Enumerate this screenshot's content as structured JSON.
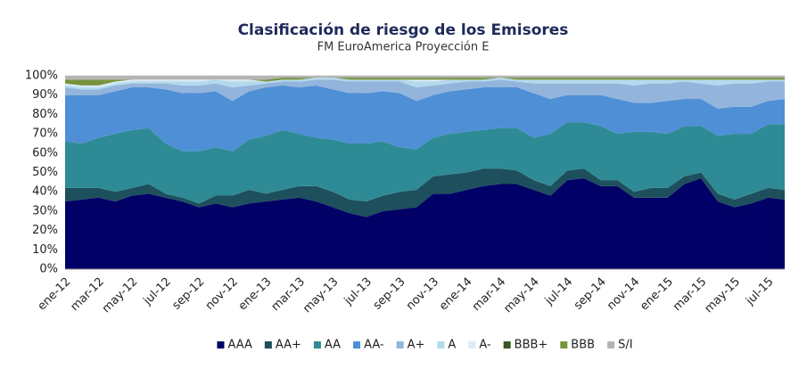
{
  "chart_data": {
    "type": "stacked_area",
    "title": "Clasificación de riesgo de los Emisores",
    "subtitle": "FM EuroAmerica Proyección E",
    "categories": [
      "ene-12",
      null,
      "mar-12",
      null,
      "may-12",
      null,
      "jul-12",
      null,
      "sep-12",
      null,
      "nov-12",
      null,
      "ene-13",
      null,
      "mar-13",
      null,
      "may-13",
      null,
      "jul-13",
      null,
      "sep-13",
      null,
      "nov-13",
      null,
      "ene-14",
      null,
      "mar-14",
      null,
      "may-14",
      null,
      "jul-14",
      null,
      "sep-14",
      null,
      "nov-14",
      null,
      "ene-15",
      null,
      "mar-15",
      null,
      "may-15",
      null,
      "jul-15",
      null
    ],
    "ylim": [
      0,
      100
    ],
    "yticks": [
      {
        "value": 0,
        "label": "0%"
      },
      {
        "value": 10,
        "label": "10%"
      },
      {
        "value": 20,
        "label": "20%"
      },
      {
        "value": 30,
        "label": "30%"
      },
      {
        "value": 40,
        "label": "40%"
      },
      {
        "value": 50,
        "label": "50%"
      },
      {
        "value": 60,
        "label": "60%"
      },
      {
        "value": 70,
        "label": "70%"
      },
      {
        "value": 80,
        "label": "80%"
      },
      {
        "value": 90,
        "label": "90%"
      },
      {
        "value": 100,
        "label": "100%"
      }
    ],
    "grid": true,
    "legend": "bottom",
    "series": [
      {
        "name": "AAA",
        "color": "#000066",
        "values": [
          35,
          36,
          37,
          35,
          38,
          39,
          37,
          35,
          32,
          34,
          32,
          34,
          35,
          36,
          37,
          35,
          32,
          29,
          27,
          30,
          31,
          32,
          39,
          39,
          41,
          43,
          44,
          44,
          41,
          38,
          46,
          47,
          43,
          43,
          37,
          37,
          37,
          44,
          47,
          35,
          32,
          34,
          37,
          36
        ]
      },
      {
        "name": "AA+",
        "color": "#1d4f5c",
        "values": [
          7,
          6,
          5,
          5,
          4,
          5,
          2,
          2,
          2,
          4,
          6,
          7,
          4,
          5,
          6,
          8,
          8,
          7,
          8,
          8,
          9,
          9,
          9,
          10,
          9,
          9,
          8,
          7,
          5,
          5,
          5,
          5,
          3,
          3,
          3,
          5,
          5,
          4,
          3,
          4,
          4,
          5,
          5,
          5
        ]
      },
      {
        "name": "AA",
        "color": "#2e8b96",
        "values": [
          24,
          23,
          26,
          30,
          30,
          29,
          26,
          24,
          27,
          25,
          23,
          26,
          30,
          31,
          27,
          25,
          27,
          29,
          30,
          28,
          23,
          21,
          20,
          21,
          21,
          20,
          21,
          22,
          22,
          27,
          25,
          24,
          28,
          24,
          31,
          29,
          28,
          26,
          24,
          30,
          34,
          31,
          33,
          34
        ]
      },
      {
        "name": "AA-",
        "color": "#4f8fd6",
        "values": [
          24,
          25,
          22,
          22,
          22,
          21,
          28,
          30,
          30,
          29,
          26,
          25,
          25,
          23,
          24,
          27,
          26,
          26,
          26,
          26,
          28,
          25,
          22,
          22,
          22,
          22,
          21,
          21,
          23,
          18,
          14,
          14,
          16,
          18,
          15,
          15,
          17,
          14,
          14,
          14,
          14,
          14,
          12,
          13
        ]
      },
      {
        "name": "A+",
        "color": "#93b5dc",
        "values": [
          4,
          3,
          3,
          3,
          2,
          2,
          3,
          4,
          4,
          4,
          7,
          3,
          2,
          2,
          3,
          3,
          5,
          6,
          6,
          5,
          6,
          7,
          5,
          4,
          4,
          3,
          4,
          3,
          5,
          8,
          6,
          6,
          6,
          8,
          9,
          10,
          9,
          9,
          8,
          12,
          12,
          12,
          10,
          9
        ]
      },
      {
        "name": "A",
        "color": "#b3d9ec",
        "values": [
          1,
          1,
          1,
          1,
          1,
          1,
          1,
          2,
          2,
          2,
          3,
          2,
          1,
          1,
          1,
          1,
          1,
          1,
          1,
          1,
          1,
          3,
          2,
          2,
          1,
          1,
          1,
          1,
          2,
          2,
          2,
          2,
          2,
          2,
          3,
          2,
          2,
          1,
          2,
          3,
          2,
          2,
          1,
          1
        ]
      },
      {
        "name": "A-",
        "color": "#dceaf6",
        "values": [
          1,
          1,
          1,
          1,
          1,
          1,
          1,
          1,
          1,
          0,
          1,
          1,
          0,
          0,
          0,
          0,
          0,
          0,
          0,
          0,
          0,
          1,
          1,
          0,
          0,
          0,
          0,
          0,
          0,
          0,
          0,
          0,
          0,
          0,
          0,
          0,
          0,
          0,
          0,
          0,
          0,
          0,
          0,
          0
        ]
      },
      {
        "name": "BBB+",
        "color": "#375623",
        "values": [
          0,
          0,
          0,
          0,
          0,
          0,
          0,
          0,
          0,
          0,
          0,
          0,
          0,
          0,
          0,
          0,
          0,
          0,
          0,
          0,
          0,
          0,
          0,
          0,
          0,
          0,
          0,
          0,
          0,
          0,
          0,
          0,
          0,
          0,
          0,
          0,
          0,
          0,
          0,
          0,
          0,
          0,
          0,
          0
        ]
      },
      {
        "name": "BBB",
        "color": "#77933c",
        "values": [
          2,
          3,
          3,
          1,
          0,
          0,
          0,
          0,
          0,
          0,
          0,
          0,
          1,
          1,
          1,
          0,
          0,
          1,
          1,
          1,
          1,
          1,
          1,
          1,
          1,
          1,
          0,
          1,
          1,
          1,
          1,
          1,
          1,
          1,
          1,
          1,
          1,
          1,
          1,
          1,
          1,
          1,
          1,
          1
        ]
      },
      {
        "name": "S/I",
        "color": "#b4b4b4",
        "values": [
          2,
          2,
          2,
          2,
          2,
          2,
          2,
          2,
          2,
          2,
          2,
          2,
          2,
          1,
          1,
          1,
          1,
          1,
          1,
          1,
          1,
          1,
          1,
          1,
          1,
          1,
          1,
          1,
          1,
          1,
          1,
          1,
          1,
          1,
          1,
          1,
          1,
          1,
          1,
          1,
          1,
          1,
          1,
          1
        ]
      }
    ]
  }
}
